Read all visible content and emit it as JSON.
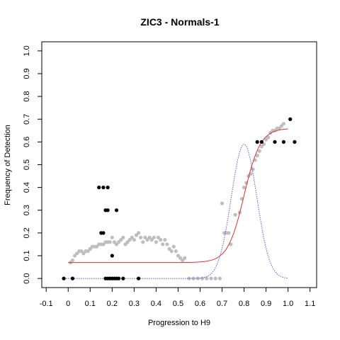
{
  "chart_data": {
    "type": "scatter",
    "title": "ZIC3 - Normals-1",
    "xlabel": "Progression to H9",
    "ylabel": "Frequency of Detection",
    "xlim": [
      -0.12,
      1.13
    ],
    "ylim": [
      -0.04,
      1.04
    ],
    "x_ticks": [
      -0.1,
      0.0,
      0.1,
      0.2,
      0.3,
      0.4,
      0.5,
      0.6,
      0.7,
      0.8,
      0.9,
      1.0,
      1.1
    ],
    "x_tick_labels": [
      "-0.1",
      "0",
      "0.1",
      "0.2",
      "0.3",
      "0.4",
      "0.5",
      "0.6",
      "0.7",
      "0.8",
      "0.9",
      "1.0",
      "1.1"
    ],
    "y_ticks": [
      0.0,
      0.1,
      0.2,
      0.3,
      0.4,
      0.5,
      0.6,
      0.7,
      0.8,
      0.9,
      1.0
    ],
    "y_tick_labels": [
      "0.0",
      "0.1",
      "0.2",
      "0.3",
      "0.4",
      "0.5",
      "0.6",
      "0.7",
      "0.8",
      "0.9",
      "1.0"
    ],
    "grid": false,
    "colors": {
      "observed": "#000000",
      "smoothed": "#bebebe",
      "sigmoid_fit": "#e03030",
      "density": "#5555dd"
    },
    "series": [
      {
        "kind": "points",
        "style": "black",
        "points": [
          [
            -0.02,
            0.0
          ],
          [
            0.02,
            0.0
          ],
          [
            0.14,
            0.4
          ],
          [
            0.16,
            0.4
          ],
          [
            0.18,
            0.4
          ],
          [
            0.15,
            0.2
          ],
          [
            0.16,
            0.2
          ],
          [
            0.17,
            0.3
          ],
          [
            0.18,
            0.3
          ],
          [
            0.22,
            0.3
          ],
          [
            0.2,
            0.1
          ],
          [
            0.17,
            0.0
          ],
          [
            0.18,
            0.0
          ],
          [
            0.19,
            0.0
          ],
          [
            0.2,
            0.0
          ],
          [
            0.21,
            0.0
          ],
          [
            0.22,
            0.0
          ],
          [
            0.23,
            0.0
          ],
          [
            0.25,
            0.0
          ],
          [
            0.32,
            0.0
          ],
          [
            0.86,
            0.6
          ],
          [
            0.88,
            0.6
          ],
          [
            0.94,
            0.6
          ],
          [
            0.98,
            0.6
          ],
          [
            1.01,
            0.7
          ],
          [
            1.03,
            0.6
          ]
        ]
      },
      {
        "kind": "points",
        "style": "gray",
        "points": [
          [
            0.01,
            0.07
          ],
          [
            0.02,
            0.08
          ],
          [
            0.03,
            0.1
          ],
          [
            0.04,
            0.11
          ],
          [
            0.05,
            0.12
          ],
          [
            0.06,
            0.12
          ],
          [
            0.07,
            0.11
          ],
          [
            0.08,
            0.12
          ],
          [
            0.09,
            0.12
          ],
          [
            0.1,
            0.13
          ],
          [
            0.11,
            0.14
          ],
          [
            0.12,
            0.14
          ],
          [
            0.13,
            0.14
          ],
          [
            0.14,
            0.15
          ],
          [
            0.15,
            0.15
          ],
          [
            0.16,
            0.15
          ],
          [
            0.17,
            0.16
          ],
          [
            0.18,
            0.16
          ],
          [
            0.19,
            0.16
          ],
          [
            0.2,
            0.18
          ],
          [
            0.21,
            0.16
          ],
          [
            0.22,
            0.15
          ],
          [
            0.23,
            0.16
          ],
          [
            0.24,
            0.17
          ],
          [
            0.25,
            0.18
          ],
          [
            0.26,
            0.15
          ],
          [
            0.27,
            0.16
          ],
          [
            0.28,
            0.17
          ],
          [
            0.29,
            0.18
          ],
          [
            0.3,
            0.17
          ],
          [
            0.31,
            0.19
          ],
          [
            0.32,
            0.2
          ],
          [
            0.33,
            0.18
          ],
          [
            0.34,
            0.16
          ],
          [
            0.35,
            0.18
          ],
          [
            0.36,
            0.17
          ],
          [
            0.37,
            0.18
          ],
          [
            0.38,
            0.17
          ],
          [
            0.39,
            0.18
          ],
          [
            0.4,
            0.16
          ],
          [
            0.41,
            0.18
          ],
          [
            0.42,
            0.17
          ],
          [
            0.43,
            0.15
          ],
          [
            0.44,
            0.17
          ],
          [
            0.45,
            0.15
          ],
          [
            0.46,
            0.13
          ],
          [
            0.47,
            0.12
          ],
          [
            0.48,
            0.14
          ],
          [
            0.49,
            0.12
          ],
          [
            0.5,
            0.1
          ],
          [
            0.51,
            0.09
          ],
          [
            0.52,
            0.08
          ],
          [
            0.53,
            0.09
          ],
          [
            0.55,
            0.0
          ],
          [
            0.57,
            0.0
          ],
          [
            0.59,
            0.0
          ],
          [
            0.61,
            0.0
          ],
          [
            0.63,
            0.0
          ],
          [
            0.65,
            0.0
          ],
          [
            0.67,
            0.0
          ],
          [
            0.69,
            0.0
          ],
          [
            0.7,
            0.33
          ],
          [
            0.71,
            0.2
          ],
          [
            0.72,
            0.2
          ],
          [
            0.73,
            0.2
          ],
          [
            0.74,
            0.15
          ],
          [
            0.76,
            0.28
          ],
          [
            0.78,
            0.29
          ],
          [
            0.79,
            0.35
          ],
          [
            0.8,
            0.4
          ],
          [
            0.81,
            0.42
          ],
          [
            0.82,
            0.45
          ],
          [
            0.83,
            0.46
          ],
          [
            0.84,
            0.48
          ],
          [
            0.85,
            0.52
          ],
          [
            0.86,
            0.54
          ],
          [
            0.87,
            0.56
          ],
          [
            0.88,
            0.58
          ],
          [
            0.89,
            0.59
          ],
          [
            0.9,
            0.61
          ],
          [
            0.91,
            0.62
          ],
          [
            0.92,
            0.64
          ],
          [
            0.93,
            0.65
          ],
          [
            0.94,
            0.65
          ],
          [
            0.95,
            0.66
          ],
          [
            0.96,
            0.66
          ],
          [
            0.97,
            0.67
          ],
          [
            0.98,
            0.68
          ]
        ]
      },
      {
        "kind": "sigmoid",
        "style": "red",
        "base": 0.07,
        "top": 0.66,
        "mid": 0.8,
        "rate": 27,
        "x_range": [
          0.0,
          1.0
        ]
      },
      {
        "kind": "gaussian",
        "style": "blue-dotted",
        "peak": 0.59,
        "mean": 0.8,
        "sd": 0.058,
        "x_range": [
          -0.02,
          1.0
        ]
      }
    ]
  }
}
